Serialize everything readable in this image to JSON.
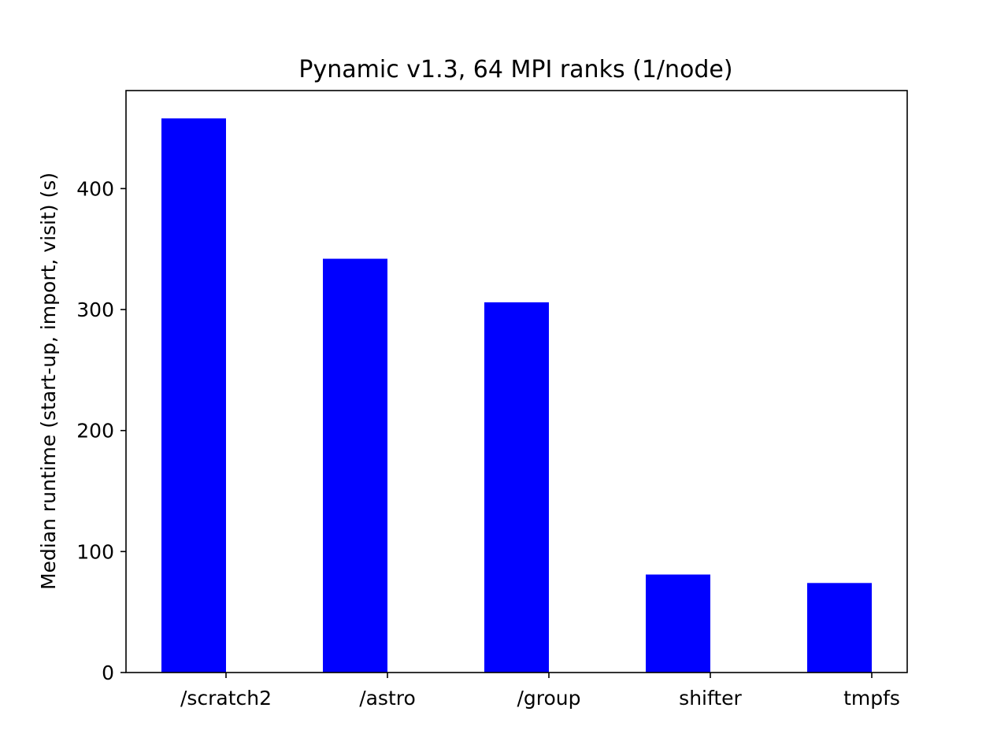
{
  "chart_data": {
    "type": "bar",
    "title": "Pynamic v1.3, 64 MPI ranks (1/node)",
    "xlabel": "",
    "ylabel": "Median runtime (start-up, import, visit) (s)",
    "categories": [
      "/scratch2",
      "/astro",
      "/group",
      "shifter",
      "tmpfs"
    ],
    "values": [
      458,
      342,
      306,
      81,
      74
    ],
    "ylim": [
      0,
      481
    ],
    "yticks": [
      0,
      100,
      200,
      300,
      400
    ],
    "grid": false,
    "legend": "none",
    "colors": {
      "bar": "#0000ff",
      "axes": "#000000"
    }
  }
}
